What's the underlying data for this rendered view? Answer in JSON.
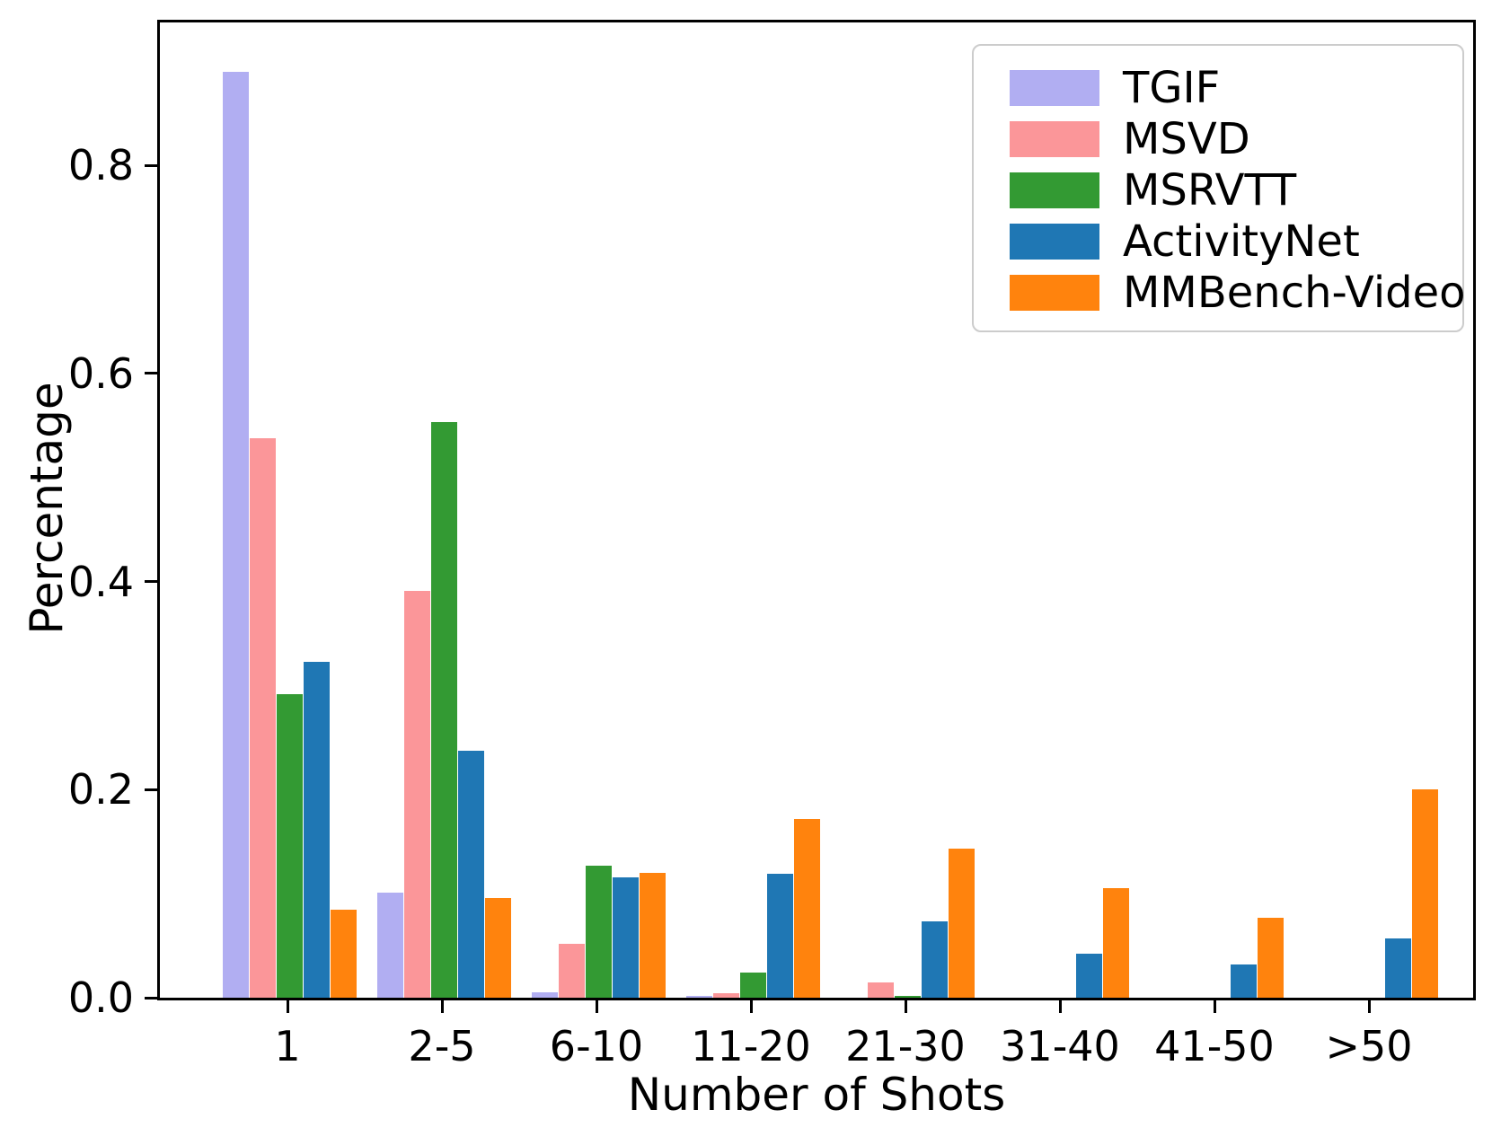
{
  "figure": {
    "background": "#ffffff",
    "axis_color": "#000000"
  },
  "chart_data": {
    "type": "bar",
    "title": "",
    "xlabel": "Number of Shots",
    "ylabel": "Percentage",
    "categories": [
      "1",
      "2-5",
      "6-10",
      "11-20",
      "21-30",
      "31-40",
      "41-50",
      ">50"
    ],
    "series": [
      {
        "name": "TGIF",
        "color": "#b1aef2",
        "values": [
          0.89,
          0.101,
          0.005,
          0.002,
          0.0,
          0.0,
          0.0,
          0.0
        ]
      },
      {
        "name": "MSVD",
        "color": "#fb9699",
        "values": [
          0.538,
          0.391,
          0.052,
          0.004,
          0.015,
          0.0,
          0.0,
          0.0
        ]
      },
      {
        "name": "MSRVTT",
        "color": "#339a33",
        "values": [
          0.292,
          0.553,
          0.127,
          0.024,
          0.002,
          0.0,
          0.0,
          0.0
        ]
      },
      {
        "name": "ActivityNet",
        "color": "#1f77b4",
        "values": [
          0.323,
          0.237,
          0.116,
          0.119,
          0.073,
          0.042,
          0.032,
          0.057
        ]
      },
      {
        "name": "MMBench-Video",
        "color": "#ff830d",
        "values": [
          0.085,
          0.096,
          0.12,
          0.172,
          0.143,
          0.105,
          0.077,
          0.2
        ]
      }
    ],
    "yticks": [
      0.0,
      0.2,
      0.4,
      0.6,
      0.8
    ],
    "ytick_labels": [
      "0.0",
      "0.2",
      "0.4",
      "0.6",
      "0.8"
    ],
    "ylim": [
      0,
      0.9375
    ],
    "grid": false,
    "legend_position": "upper right"
  }
}
